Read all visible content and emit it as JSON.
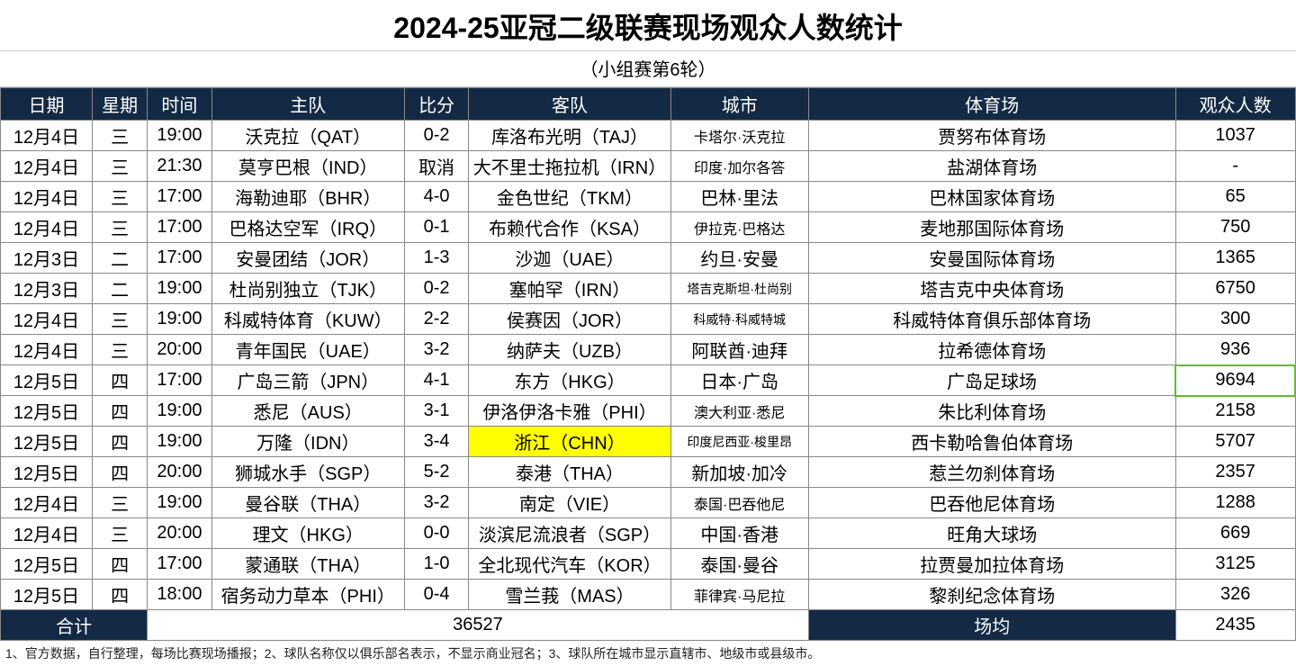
{
  "title": "2024-25亚冠二级联赛现场观众人数统计",
  "subtitle": "（小组赛第6轮）",
  "columns": [
    "日期",
    "星期",
    "时间",
    "主队",
    "比分",
    "客队",
    "城市",
    "体育场",
    "观众人数"
  ],
  "col_widths": [
    "col-date",
    "col-weekday",
    "col-time",
    "col-home",
    "col-score",
    "col-away",
    "col-city",
    "col-stadium",
    "col-attendance"
  ],
  "header_bg": "#142a44",
  "header_fg": "#ffffff",
  "highlight_color": "#ffff00",
  "box_color": "#5cc02a",
  "rows": [
    {
      "date": "12月4日",
      "wd": "三",
      "time": "19:00",
      "home": "沃克拉（QAT）",
      "score": "0-2",
      "away": "库洛布光明（TAJ）",
      "city": "卡塔尔·沃克拉",
      "city_small": true,
      "stadium": "贾努布体育场",
      "att": "1037"
    },
    {
      "date": "12月4日",
      "wd": "三",
      "time": "21:30",
      "home": "莫亨巴根（IND）",
      "score": "取消",
      "away": "大不里士拖拉机（IRN）",
      "city": "印度·加尔各答",
      "city_small": true,
      "stadium": "盐湖体育场",
      "att": "-"
    },
    {
      "date": "12月4日",
      "wd": "三",
      "time": "17:00",
      "home": "海勒迪耶（BHR）",
      "score": "4-0",
      "away": "金色世纪（TKM）",
      "city": "巴林·里法",
      "stadium": "巴林国家体育场",
      "att": "65"
    },
    {
      "date": "12月4日",
      "wd": "三",
      "time": "17:00",
      "home": "巴格达空军（IRQ）",
      "score": "0-1",
      "away": "布赖代合作（KSA）",
      "city": "伊拉克·巴格达",
      "city_small": true,
      "stadium": "麦地那国际体育场",
      "att": "750"
    },
    {
      "date": "12月3日",
      "wd": "二",
      "time": "17:00",
      "home": "安曼团结（JOR）",
      "score": "1-3",
      "away": "沙迦（UAE）",
      "city": "约旦·安曼",
      "stadium": "安曼国际体育场",
      "att": "1365"
    },
    {
      "date": "12月3日",
      "wd": "二",
      "time": "19:00",
      "home": "杜尚别独立（TJK）",
      "score": "0-2",
      "away": "塞帕罕（IRN）",
      "city": "塔吉克斯坦·杜尚别",
      "city_xsmall": true,
      "stadium": "塔吉克中央体育场",
      "att": "6750"
    },
    {
      "date": "12月4日",
      "wd": "三",
      "time": "19:00",
      "home": "科威特体育（KUW）",
      "score": "2-2",
      "away": "侯赛因（JOR）",
      "city": "科威特·科威特城",
      "city_xsmall": true,
      "stadium": "科威特体育俱乐部体育场",
      "att": "300"
    },
    {
      "date": "12月4日",
      "wd": "三",
      "time": "20:00",
      "home": "青年国民（UAE）",
      "score": "3-2",
      "away": "纳萨夫（UZB）",
      "city": "阿联酋·迪拜",
      "stadium": "拉希德体育场",
      "att": "936"
    },
    {
      "date": "12月5日",
      "wd": "四",
      "time": "17:00",
      "home": "广岛三箭（JPN）",
      "score": "4-1",
      "away": "东方（HKG）",
      "city": "日本·广岛",
      "stadium": "广岛足球场",
      "att": "9694",
      "att_box": true
    },
    {
      "date": "12月5日",
      "wd": "四",
      "time": "19:00",
      "home": "悉尼（AUS）",
      "score": "3-1",
      "away": "伊洛伊洛卡雅（PHI）",
      "city": "澳大利亚·悉尼",
      "city_small": true,
      "stadium": "朱比利体育场",
      "att": "2158"
    },
    {
      "date": "12月5日",
      "wd": "四",
      "time": "19:00",
      "home": "万隆（IDN）",
      "score": "3-4",
      "away": "浙江（CHN）",
      "away_hl": true,
      "city": "印度尼西亚·梭里昂",
      "city_xsmall": true,
      "stadium": "西卡勒哈鲁伯体育场",
      "att": "5707"
    },
    {
      "date": "12月5日",
      "wd": "四",
      "time": "20:00",
      "home": "狮城水手（SGP）",
      "score": "5-2",
      "away": "泰港（THA）",
      "city": "新加坡·加冷",
      "stadium": "惹兰勿刹体育场",
      "att": "2357"
    },
    {
      "date": "12月4日",
      "wd": "三",
      "time": "19:00",
      "home": "曼谷联（THA）",
      "score": "3-2",
      "away": "南定（VIE）",
      "city": "泰国·巴吞他尼",
      "city_small": true,
      "stadium": "巴吞他尼体育场",
      "att": "1288"
    },
    {
      "date": "12月4日",
      "wd": "三",
      "time": "20:00",
      "home": "理文（HKG）",
      "score": "0-0",
      "away": "淡滨尼流浪者（SGP）",
      "city": "中国·香港",
      "stadium": "旺角大球场",
      "att": "669"
    },
    {
      "date": "12月5日",
      "wd": "四",
      "time": "17:00",
      "home": "蒙通联（THA）",
      "score": "1-0",
      "away": "全北现代汽车（KOR）",
      "city": "泰国·曼谷",
      "stadium": "拉贾曼加拉体育场",
      "att": "3125"
    },
    {
      "date": "12月5日",
      "wd": "四",
      "time": "18:00",
      "home": "宿务动力草本（PHI）",
      "score": "0-4",
      "away": "雪兰莪（MAS）",
      "city": "菲律宾·马尼拉",
      "city_small": true,
      "stadium": "黎刹纪念体育场",
      "att": "326"
    }
  ],
  "footer": {
    "total_label": "合计",
    "total_value": "36527",
    "avg_label": "场均",
    "avg_value": "2435"
  },
  "footnote": "1、官方数据，自行整理，每场比赛现场播报；2、球队名称仅以俱乐部名表示，不显示商业冠名；3、球队所在城市显示直辖市、地级市或县级市。"
}
